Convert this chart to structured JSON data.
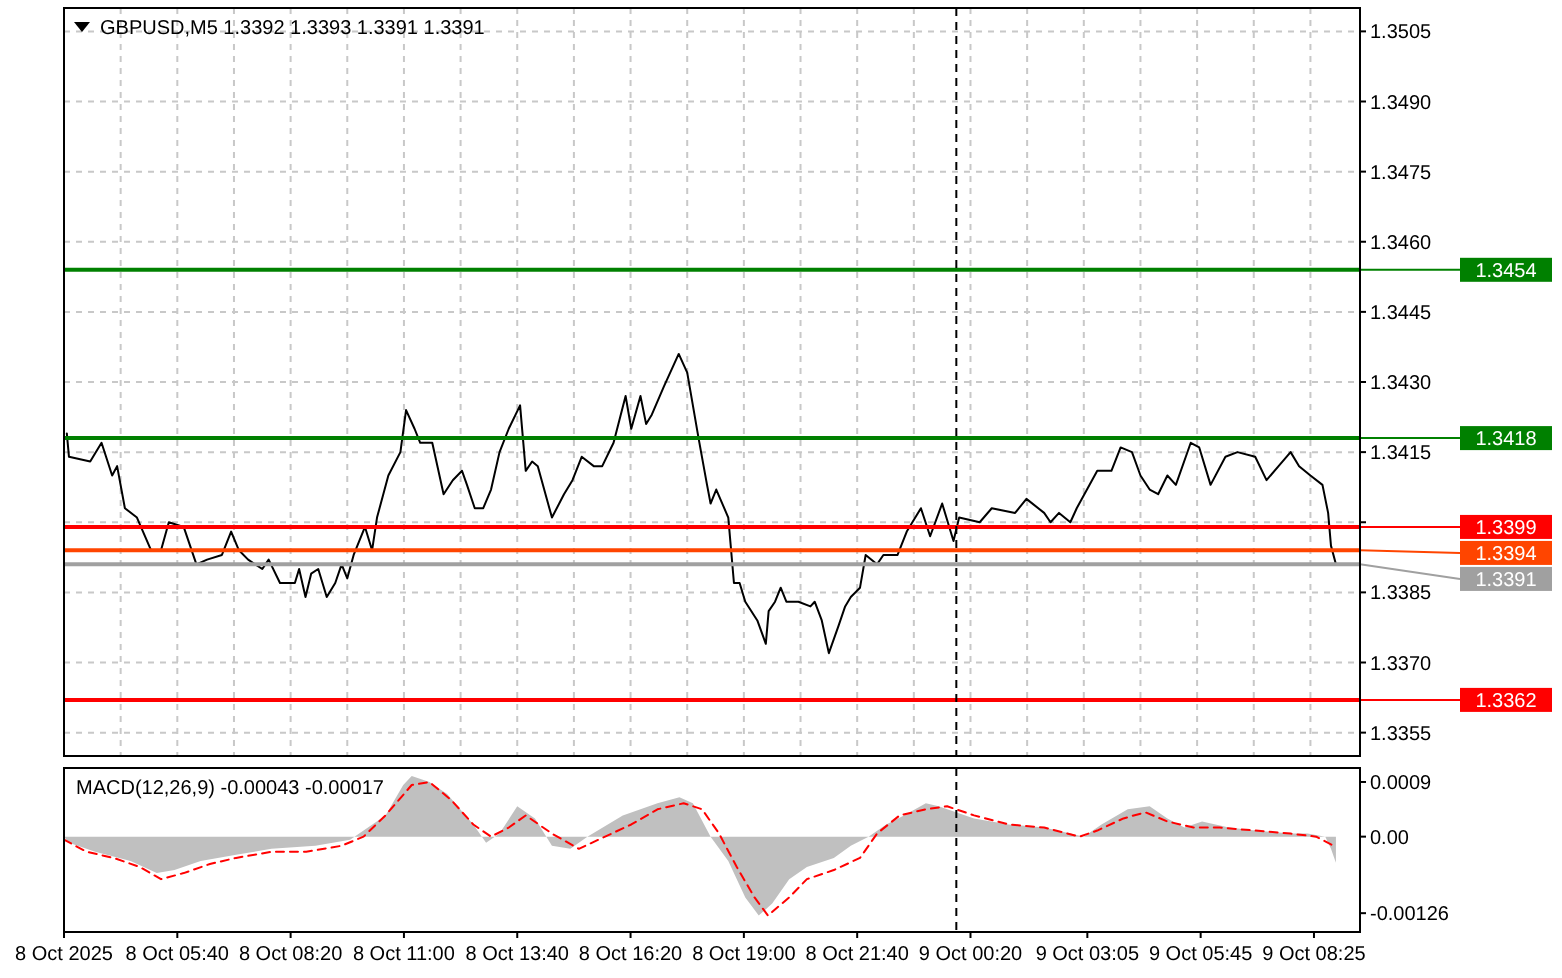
{
  "chart_data": [
    {
      "type": "line",
      "title": "GBPUSD,M5  1.3392 1.3393 1.3391 1.3391",
      "color": "#000000",
      "x": [
        "2025-10-08T03:04",
        "2025-10-08T03:07",
        "2025-10-08T03:37",
        "2025-10-08T03:53",
        "2025-10-08T04:08",
        "2025-10-08T04:15",
        "2025-10-08T04:26",
        "2025-10-08T04:43",
        "2025-10-08T05:03",
        "2025-10-08T05:17",
        "2025-10-08T05:28",
        "2025-10-08T05:49",
        "2025-10-08T06:07",
        "2025-10-08T06:22",
        "2025-10-08T06:43",
        "2025-10-08T06:56",
        "2025-10-08T07:07",
        "2025-10-08T07:20",
        "2025-10-08T07:40",
        "2025-10-08T07:49",
        "2025-10-08T08:05",
        "2025-10-08T08:26",
        "2025-10-08T08:32",
        "2025-10-08T08:41",
        "2025-10-08T08:49",
        "2025-10-08T08:59",
        "2025-10-08T09:11",
        "2025-10-08T09:23",
        "2025-10-08T09:32",
        "2025-10-08T09:40",
        "2025-10-08T09:49",
        "2025-10-08T10:05",
        "2025-10-08T10:15",
        "2025-10-08T10:22",
        "2025-10-08T10:38",
        "2025-10-08T10:55",
        "2025-10-08T11:03",
        "2025-10-08T11:15",
        "2025-10-08T11:23",
        "2025-10-08T11:40",
        "2025-10-08T11:56",
        "2025-10-08T12:09",
        "2025-10-08T12:22",
        "2025-10-08T12:29",
        "2025-10-08T12:40",
        "2025-10-08T12:52",
        "2025-10-08T13:03",
        "2025-10-08T13:15",
        "2025-10-08T13:28",
        "2025-10-08T13:44",
        "2025-10-08T13:52",
        "2025-10-08T14:01",
        "2025-10-08T14:09",
        "2025-10-08T14:29",
        "2025-10-08T14:46",
        "2025-10-08T14:58",
        "2025-10-08T15:11",
        "2025-10-08T15:28",
        "2025-10-08T15:40",
        "2025-10-08T15:56",
        "2025-10-08T16:13",
        "2025-10-08T16:21",
        "2025-10-08T16:34",
        "2025-10-08T16:42",
        "2025-10-08T16:50",
        "2025-10-08T17:07",
        "2025-10-08T17:28",
        "2025-10-08T17:40",
        "2025-10-08T17:56",
        "2025-10-08T18:08",
        "2025-10-08T18:13",
        "2025-10-08T18:21",
        "2025-10-08T18:38",
        "2025-10-08T18:46",
        "2025-10-08T18:54",
        "2025-10-08T19:02",
        "2025-10-08T19:19",
        "2025-10-08T19:31",
        "2025-10-08T19:35",
        "2025-10-08T19:44",
        "2025-10-08T19:52",
        "2025-10-08T20:00",
        "2025-10-08T20:17",
        "2025-10-08T20:34",
        "2025-10-08T20:40",
        "2025-10-08T20:50",
        "2025-10-08T21:00",
        "2025-10-08T21:14",
        "2025-10-08T21:23",
        "2025-10-08T21:31",
        "2025-10-08T21:44",
        "2025-10-08T21:52",
        "2025-10-08T22:08",
        "2025-10-08T22:17",
        "2025-10-08T22:37",
        "2025-10-08T22:50",
        "2025-10-08T23:10",
        "2025-10-08T23:23",
        "2025-10-08T23:40",
        "2025-10-08T23:56",
        "2025-10-09T00:04",
        "2025-10-09T00:33",
        "2025-10-09T00:50",
        "2025-10-09T01:23",
        "2025-10-09T01:39",
        "2025-10-09T02:04",
        "2025-10-09T02:13",
        "2025-10-09T02:25",
        "2025-10-09T02:41",
        "2025-10-09T02:50",
        "2025-10-09T03:19",
        "2025-10-09T03:39",
        "2025-10-09T03:52",
        "2025-10-09T04:08",
        "2025-10-09T04:20",
        "2025-10-09T04:33",
        "2025-10-09T04:45",
        "2025-10-09T04:58",
        "2025-10-09T05:10",
        "2025-10-09T05:31",
        "2025-10-09T05:43",
        "2025-10-09T05:59",
        "2025-10-09T06:20",
        "2025-10-09T06:37",
        "2025-10-09T07:02",
        "2025-10-09T07:18",
        "2025-10-09T07:35",
        "2025-10-09T07:52",
        "2025-10-09T08:04",
        "2025-10-09T08:20",
        "2025-10-09T08:37",
        "2025-10-09T08:45",
        "2025-10-09T08:49",
        "2025-10-09T08:56"
      ],
      "values": [
        1.3419,
        1.3414,
        1.3413,
        1.3417,
        1.341,
        1.3412,
        1.3403,
        1.3401,
        1.3394,
        1.3394,
        1.34,
        1.3399,
        1.3391,
        1.3392,
        1.3393,
        1.3398,
        1.3394,
        1.3392,
        1.339,
        1.3392,
        1.3387,
        1.3387,
        1.339,
        1.3384,
        1.3389,
        1.339,
        1.3384,
        1.3387,
        1.3391,
        1.3388,
        1.3393,
        1.3399,
        1.3394,
        1.3401,
        1.341,
        1.3415,
        1.3424,
        1.342,
        1.3417,
        1.3417,
        1.3406,
        1.3409,
        1.3411,
        1.3408,
        1.3403,
        1.3403,
        1.3407,
        1.3415,
        1.342,
        1.3425,
        1.3411,
        1.3413,
        1.3412,
        1.3401,
        1.3406,
        1.3409,
        1.3414,
        1.3412,
        1.3412,
        1.3417,
        1.3427,
        1.342,
        1.3427,
        1.3421,
        1.3423,
        1.3429,
        1.3436,
        1.3432,
        1.3418,
        1.3408,
        1.3404,
        1.3407,
        1.3401,
        1.3387,
        1.3387,
        1.3383,
        1.3379,
        1.3374,
        1.3381,
        1.3383,
        1.3386,
        1.3383,
        1.3383,
        1.3382,
        1.3383,
        1.3379,
        1.3372,
        1.3378,
        1.3382,
        1.3384,
        1.3386,
        1.3393,
        1.3391,
        1.3393,
        1.3393,
        1.3398,
        1.3403,
        1.3397,
        1.3404,
        1.3396,
        1.3401,
        1.34,
        1.3403,
        1.3402,
        1.3405,
        1.3402,
        1.34,
        1.3402,
        1.34,
        1.3403,
        1.3411,
        1.3411,
        1.3416,
        1.3415,
        1.341,
        1.3407,
        1.3406,
        1.341,
        1.3408,
        1.3417,
        1.3416,
        1.3408,
        1.3414,
        1.3415,
        1.3414,
        1.3409,
        1.3412,
        1.3415,
        1.3412,
        1.341,
        1.3408,
        1.3402,
        1.3395,
        1.3391
      ],
      "xlim": [
        "2025-10-08T03:00",
        "2025-10-09T09:30"
      ],
      "ylim": [
        1.335,
        1.351
      ],
      "xticks": [
        {
          "value": "2025-10-08T03:00",
          "label": null
        },
        {
          "value": "2025-10-08T04:20",
          "label": null
        },
        {
          "value": "2025-10-08T05:40",
          "label": null
        },
        {
          "value": "2025-10-08T07:00",
          "label": null
        },
        {
          "value": "2025-10-08T08:20",
          "label": null
        },
        {
          "value": "2025-10-08T09:40",
          "label": null
        },
        {
          "value": "2025-10-08T11:00",
          "label": null
        },
        {
          "value": "2025-10-08T12:20",
          "label": null
        },
        {
          "value": "2025-10-08T13:40",
          "label": null
        },
        {
          "value": "2025-10-08T15:00",
          "label": null
        },
        {
          "value": "2025-10-08T16:20",
          "label": null
        },
        {
          "value": "2025-10-08T17:40",
          "label": null
        },
        {
          "value": "2025-10-08T19:00",
          "label": null
        },
        {
          "value": "2025-10-08T20:20",
          "label": null
        },
        {
          "value": "2025-10-08T21:40",
          "label": null
        },
        {
          "value": "2025-10-08T23:00",
          "label": null
        },
        {
          "value": "2025-10-09T00:20",
          "label": null
        },
        {
          "value": "2025-10-09T01:40",
          "label": null
        },
        {
          "value": "2025-10-09T03:00",
          "label": null
        },
        {
          "value": "2025-10-09T04:20",
          "label": null
        },
        {
          "value": "2025-10-09T05:40",
          "label": null
        },
        {
          "value": "2025-10-09T07:00",
          "label": null
        },
        {
          "value": "2025-10-09T08:20",
          "label": null
        }
      ],
      "yticks": [
        {
          "value": 1.3505,
          "label": "1.3505"
        },
        {
          "value": 1.349,
          "label": "1.3490"
        },
        {
          "value": 1.3475,
          "label": "1.3475"
        },
        {
          "value": 1.346,
          "label": "1.3460"
        },
        {
          "value": 1.3445,
          "label": "1.3445"
        },
        {
          "value": 1.343,
          "label": "1.3430"
        },
        {
          "value": 1.3415,
          "label": "1.3415"
        },
        {
          "value": 1.34,
          "label": null
        },
        {
          "value": 1.3385,
          "label": "1.3385"
        },
        {
          "value": 1.337,
          "label": "1.3370"
        },
        {
          "value": 1.3355,
          "label": "1.3355"
        }
      ],
      "grid": true,
      "tick_labels": "y",
      "ref_lines": [
        {
          "axis": "y",
          "value": 1.3454,
          "label": "1.3454",
          "color": "#008000"
        },
        {
          "axis": "y",
          "value": 1.3418,
          "label": "1.3418",
          "color": "#008000"
        },
        {
          "axis": "y",
          "value": 1.3399,
          "label": "1.3399",
          "color": "#ff0000"
        },
        {
          "axis": "y",
          "value": 1.3394,
          "label": "1.3394",
          "color": "#ff4500"
        },
        {
          "axis": "y",
          "value": 1.3391,
          "label": "1.3391",
          "color": "#a0a0a0"
        },
        {
          "axis": "y",
          "value": 1.3362,
          "label": "1.3362",
          "color": "#ff0000"
        },
        {
          "axis": "x",
          "value": "2025-10-09T00:00",
          "label": null,
          "color": "#000000",
          "line_style": "dashed"
        }
      ]
    },
    {
      "type": "line",
      "title": "MACD(12,26,9) -0.00043 -0.00017",
      "series": [
        {
          "type": "area",
          "color": "#c0c0c0",
          "x": [
            "2025-10-08T03:00",
            "2025-10-08T03:07",
            "2025-10-08T03:44",
            "2025-10-08T04:34",
            "2025-10-08T05:11",
            "2025-10-08T05:36",
            "2025-10-08T06:13",
            "2025-10-08T07:03",
            "2025-10-08T07:53",
            "2025-10-08T08:55",
            "2025-10-08T09:44",
            "2025-10-08T10:03",
            "2025-10-08T10:34",
            "2025-10-08T10:59",
            "2025-10-08T11:11",
            "2025-10-08T11:36",
            "2025-10-08T12:01",
            "2025-10-08T12:38",
            "2025-10-08T12:56",
            "2025-10-08T13:15",
            "2025-10-08T13:40",
            "2025-10-08T14:05",
            "2025-10-08T14:29",
            "2025-10-08T14:55",
            "2025-10-08T15:19",
            "2025-10-08T16:09",
            "2025-10-08T16:58",
            "2025-10-08T17:29",
            "2025-10-08T17:48",
            "2025-10-08T18:13",
            "2025-10-08T18:38",
            "2025-10-08T19:02",
            "2025-10-08T19:21",
            "2025-10-08T19:40",
            "2025-10-08T20:04",
            "2025-10-08T20:29",
            "2025-10-08T21:07",
            "2025-10-08T21:31",
            "2025-10-08T21:56",
            "2025-10-08T22:21",
            "2025-10-08T22:46",
            "2025-10-08T23:17",
            "2025-10-08T23:35",
            "2025-10-09T00:25",
            "2025-10-09T01:14",
            "2025-10-09T02:04",
            "2025-10-09T02:41",
            "2025-10-09T03:00",
            "2025-10-09T03:25",
            "2025-10-09T04:02",
            "2025-10-09T04:33",
            "2025-10-09T04:58",
            "2025-10-09T05:22",
            "2025-10-09T05:47",
            "2025-10-09T06:25",
            "2025-10-09T07:02",
            "2025-10-09T07:52",
            "2025-10-09T08:16",
            "2025-10-09T08:41",
            "2025-10-09T08:49",
            "2025-10-09T08:56"
          ],
          "values": [
            0,
            -0.0001,
            -0.00025,
            -0.0004,
            -0.0006,
            -0.00055,
            -0.0004,
            -0.0003,
            -0.0002,
            -0.00015,
            -5e-05,
            0.0001,
            0.00035,
            0.00085,
            0.001,
            0.0009,
            0.0007,
            0.0002,
            -0.0001,
            5e-05,
            0.0005,
            0.0003,
            -0.00015,
            -0.0002,
            0,
            0.00035,
            0.00055,
            0.00065,
            0.00055,
            0,
            -0.0004,
            -0.001,
            -0.0013,
            -0.0011,
            -0.0007,
            -0.0005,
            -0.00035,
            -0.00015,
            0,
            0.0002,
            0.00035,
            0.00055,
            0.0005,
            0.0003,
            0.0002,
            0.00015,
            5e-05,
            0,
            0.0002,
            0.00045,
            0.0005,
            0.0003,
            0.00015,
            0.00025,
            0.00015,
            0.0001,
            5e-05,
            5e-05,
            0,
            -0.0002,
            -0.00043
          ]
        },
        {
          "type": "line",
          "color": "#ff0000",
          "line_style": "dashed",
          "x": [
            "2025-10-08T03:00",
            "2025-10-08T03:32",
            "2025-10-08T04:10",
            "2025-10-08T04:47",
            "2025-10-08T05:17",
            "2025-10-08T05:49",
            "2025-10-08T06:26",
            "2025-10-08T07:03",
            "2025-10-08T07:53",
            "2025-10-08T08:42",
            "2025-10-08T09:32",
            "2025-10-08T10:03",
            "2025-10-08T10:34",
            "2025-10-08T11:11",
            "2025-10-08T11:36",
            "2025-10-08T12:07",
            "2025-10-08T12:38",
            "2025-10-08T13:03",
            "2025-10-08T13:28",
            "2025-10-08T13:52",
            "2025-10-08T14:29",
            "2025-10-08T15:07",
            "2025-10-08T15:44",
            "2025-10-08T16:21",
            "2025-10-08T16:58",
            "2025-10-08T17:35",
            "2025-10-08T18:01",
            "2025-10-08T18:25",
            "2025-10-08T18:50",
            "2025-10-08T19:15",
            "2025-10-08T19:34",
            "2025-10-08T20:04",
            "2025-10-08T20:29",
            "2025-10-08T21:07",
            "2025-10-08T21:44",
            "2025-10-08T22:08",
            "2025-10-08T22:40",
            "2025-10-08T23:17",
            "2025-10-08T23:47",
            "2025-10-09T00:25",
            "2025-10-09T01:14",
            "2025-10-09T02:04",
            "2025-10-09T02:54",
            "2025-10-09T03:19",
            "2025-10-09T03:56",
            "2025-10-09T04:27",
            "2025-10-09T04:58",
            "2025-10-09T05:35",
            "2025-10-09T06:12",
            "2025-10-09T07:02",
            "2025-10-09T07:52",
            "2025-10-09T08:28",
            "2025-10-09T08:56"
          ],
          "values": [
            -5e-05,
            -0.00025,
            -0.00035,
            -0.0005,
            -0.0007,
            -0.0006,
            -0.00045,
            -0.00035,
            -0.00025,
            -0.00025,
            -0.00015,
            0,
            0.00035,
            0.00085,
            0.0009,
            0.0006,
            0.0002,
            0,
            0.00015,
            0.00035,
            5e-05,
            -0.0002,
            0,
            0.0002,
            0.00045,
            0.00055,
            0.00045,
            5e-05,
            -0.0005,
            -0.001,
            -0.0013,
            -0.001,
            -0.0007,
            -0.00055,
            -0.00035,
            5e-05,
            0.00035,
            0.00045,
            0.0005,
            0.00035,
            0.0002,
            0.00015,
            0,
            0.0001,
            0.0003,
            0.0004,
            0.00025,
            0.00015,
            0.00015,
            0.0001,
            5e-05,
            0,
            -0.00017
          ]
        }
      ],
      "xlim": [
        "2025-10-08T03:00",
        "2025-10-09T09:30"
      ],
      "ylim": [
        -0.00157,
        0.00113
      ],
      "xticks": [
        {
          "value": "2025-10-08T03:00",
          "label": "8 Oct 2025"
        },
        {
          "value": "2025-10-08T05:40",
          "label": "8 Oct 05:40"
        },
        {
          "value": "2025-10-08T08:20",
          "label": "8 Oct 08:20"
        },
        {
          "value": "2025-10-08T11:00",
          "label": "8 Oct 11:00"
        },
        {
          "value": "2025-10-08T13:40",
          "label": "8 Oct 13:40"
        },
        {
          "value": "2025-10-08T16:20",
          "label": "8 Oct 16:20"
        },
        {
          "value": "2025-10-08T19:00",
          "label": "8 Oct 19:00"
        },
        {
          "value": "2025-10-08T21:40",
          "label": "8 Oct 21:40"
        },
        {
          "value": "2025-10-09T00:20",
          "label": "9 Oct 00:20"
        },
        {
          "value": "2025-10-09T03:05",
          "label": "9 Oct 03:05"
        },
        {
          "value": "2025-10-09T05:45",
          "label": "9 Oct 05:45"
        },
        {
          "value": "2025-10-09T08:25",
          "label": "9 Oct 08:25"
        }
      ],
      "yticks": [
        {
          "value": 0.0009,
          "label": "0.0009"
        },
        {
          "value": 0,
          "label": "0.00"
        },
        {
          "value": -0.00126,
          "label": "-0.00126"
        }
      ],
      "grid": false,
      "ref_lines": [
        {
          "axis": "x",
          "value": "2025-10-09T00:00",
          "label": null,
          "color": "#000000",
          "line_style": "dashed"
        }
      ]
    }
  ]
}
